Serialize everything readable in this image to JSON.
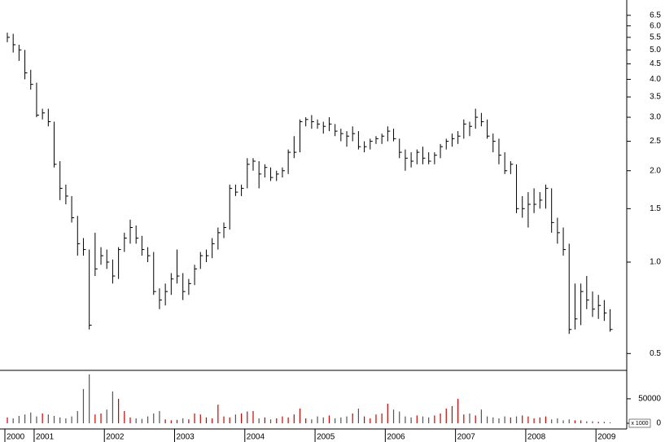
{
  "chart_data": [
    {
      "type": "hlc",
      "log_scale": true,
      "color": "#000000",
      "categories": [
        "2000",
        null,
        null,
        null,
        null,
        "2001",
        null,
        null,
        null,
        null,
        null,
        null,
        null,
        null,
        null,
        null,
        null,
        "2002",
        null,
        null,
        null,
        null,
        null,
        null,
        null,
        null,
        null,
        null,
        null,
        "2003",
        null,
        null,
        null,
        null,
        null,
        null,
        null,
        null,
        null,
        null,
        null,
        "2004",
        null,
        null,
        null,
        null,
        null,
        null,
        null,
        null,
        null,
        null,
        null,
        "2005",
        null,
        null,
        null,
        null,
        null,
        null,
        null,
        null,
        null,
        null,
        null,
        "2006",
        null,
        null,
        null,
        null,
        null,
        null,
        null,
        null,
        null,
        null,
        null,
        "2007",
        null,
        null,
        null,
        null,
        null,
        null,
        null,
        null,
        null,
        null,
        null,
        "2008",
        null,
        null,
        null,
        null,
        null,
        null,
        null,
        null,
        null,
        null,
        null,
        "2009",
        null,
        null
      ],
      "high": [
        5.7,
        5.65,
        5.2,
        5.0,
        4.3,
        3.9,
        3.2,
        3.2,
        2.9,
        2.15,
        1.8,
        1.65,
        1.42,
        1.2,
        1.1,
        1.25,
        1.12,
        1.1,
        1.02,
        1.12,
        1.25,
        1.38,
        1.32,
        1.22,
        1.12,
        1.08,
        0.82,
        0.85,
        0.92,
        1.1,
        0.92,
        0.88,
        0.98,
        1.08,
        1.1,
        1.2,
        1.3,
        1.35,
        1.8,
        1.8,
        1.8,
        2.2,
        2.2,
        2.15,
        2.1,
        2.05,
        2.0,
        2.05,
        2.35,
        2.6,
        2.95,
        3.0,
        3.05,
        2.95,
        2.9,
        3.0,
        2.85,
        2.75,
        2.7,
        2.8,
        2.7,
        2.5,
        2.55,
        2.6,
        2.65,
        2.8,
        2.75,
        2.55,
        2.35,
        2.3,
        2.35,
        2.4,
        2.3,
        2.3,
        2.45,
        2.55,
        2.65,
        2.7,
        2.95,
        2.9,
        3.2,
        3.1,
        2.95,
        2.65,
        2.55,
        2.3,
        2.15,
        2.1,
        1.65,
        1.7,
        1.75,
        1.7,
        1.8,
        1.75,
        1.4,
        1.3,
        1.15,
        0.85,
        0.85,
        0.9,
        0.8,
        0.78,
        0.75,
        0.7
      ],
      "low": [
        5.3,
        4.9,
        4.6,
        4.0,
        3.7,
        3.0,
        2.95,
        2.8,
        2.05,
        1.6,
        1.55,
        1.35,
        1.05,
        1.05,
        0.6,
        0.9,
        0.98,
        0.95,
        0.85,
        0.88,
        1.08,
        1.15,
        1.15,
        1.05,
        1.0,
        0.78,
        0.7,
        0.72,
        0.78,
        0.85,
        0.75,
        0.78,
        0.84,
        0.95,
        1.0,
        1.03,
        1.1,
        1.2,
        1.28,
        1.65,
        1.65,
        1.75,
        2.0,
        1.75,
        1.9,
        1.85,
        1.85,
        1.9,
        1.95,
        2.2,
        2.3,
        2.8,
        2.75,
        2.75,
        2.65,
        2.7,
        2.6,
        2.5,
        2.4,
        2.5,
        2.35,
        2.3,
        2.35,
        2.45,
        2.45,
        2.5,
        2.5,
        2.2,
        2.0,
        2.05,
        2.1,
        2.1,
        2.1,
        2.1,
        2.2,
        2.35,
        2.4,
        2.45,
        2.55,
        2.6,
        2.75,
        2.8,
        2.55,
        2.3,
        2.1,
        1.95,
        1.95,
        1.45,
        1.4,
        1.3,
        1.45,
        1.5,
        1.5,
        1.25,
        1.15,
        1.05,
        0.58,
        0.6,
        0.62,
        0.7,
        0.66,
        0.65,
        0.64,
        0.59
      ],
      "close": [
        5.5,
        5.2,
        5.0,
        4.2,
        3.85,
        3.05,
        3.1,
        2.9,
        2.1,
        1.75,
        1.65,
        1.4,
        1.15,
        1.1,
        0.62,
        0.95,
        1.05,
        1.0,
        0.9,
        1.1,
        1.2,
        1.3,
        1.2,
        1.1,
        1.05,
        0.8,
        0.75,
        0.8,
        0.88,
        0.9,
        0.8,
        0.85,
        0.95,
        1.05,
        1.05,
        1.15,
        1.25,
        1.3,
        1.75,
        1.7,
        1.75,
        2.1,
        2.15,
        1.95,
        2.05,
        1.9,
        1.95,
        2.0,
        2.3,
        2.3,
        2.9,
        2.95,
        2.9,
        2.85,
        2.8,
        2.85,
        2.7,
        2.65,
        2.6,
        2.65,
        2.4,
        2.4,
        2.5,
        2.55,
        2.6,
        2.7,
        2.55,
        2.3,
        2.2,
        2.15,
        2.3,
        2.2,
        2.15,
        2.25,
        2.4,
        2.5,
        2.55,
        2.6,
        2.85,
        2.8,
        3.0,
        2.9,
        2.6,
        2.5,
        2.25,
        2.0,
        2.1,
        1.5,
        1.5,
        1.55,
        1.55,
        1.6,
        1.75,
        1.35,
        1.25,
        1.1,
        0.6,
        0.65,
        0.8,
        0.75,
        0.7,
        0.72,
        0.68,
        0.6
      ],
      "ylim": [
        0.44,
        7.3
      ],
      "yticks": [
        0.5,
        {
          "value": 1,
          "label": "1.0"
        },
        1.5,
        {
          "value": 2,
          "label": "2.0"
        },
        2.5,
        {
          "value": 3,
          "label": "3.0"
        },
        3.5,
        {
          "value": 4,
          "label": "4.0"
        },
        4.5,
        {
          "value": 5,
          "label": "5.0"
        },
        5.5,
        {
          "value": 6,
          "label": "6.0"
        },
        6.5
      ]
    },
    {
      "type": "volume",
      "up_color": "#cc0000",
      "down_color": "#555555",
      "volume_unit_label": "x 1000",
      "values": [
        12000,
        10000,
        15000,
        18000,
        22000,
        14000,
        20000,
        18000,
        15000,
        12000,
        10000,
        14000,
        25000,
        70000,
        100000,
        18000,
        20000,
        28000,
        65000,
        50000,
        25000,
        12000,
        10000,
        9000,
        14000,
        20000,
        25000,
        8000,
        6000,
        7000,
        10000,
        8000,
        20000,
        18000,
        12000,
        10000,
        38000,
        14000,
        12000,
        18000,
        20000,
        24000,
        25000,
        10000,
        12000,
        8000,
        10000,
        14000,
        12000,
        18000,
        30000,
        10000,
        8000,
        14000,
        12000,
        16000,
        10000,
        12000,
        14000,
        20000,
        30000,
        14000,
        10000,
        18000,
        20000,
        40000,
        28000,
        24000,
        14000,
        12000,
        16000,
        14000,
        12000,
        16000,
        20000,
        30000,
        35000,
        50000,
        18000,
        20000,
        16000,
        28000,
        14000,
        12000,
        10000,
        14000,
        12000,
        14000,
        16000,
        14000,
        10000,
        12000,
        14000,
        8000,
        10000,
        6000,
        8000,
        6000,
        6000,
        4000,
        4000,
        3000,
        3000,
        2000
      ],
      "ylim": [
        0,
        108000
      ],
      "yticks": [
        0,
        50000
      ]
    }
  ]
}
